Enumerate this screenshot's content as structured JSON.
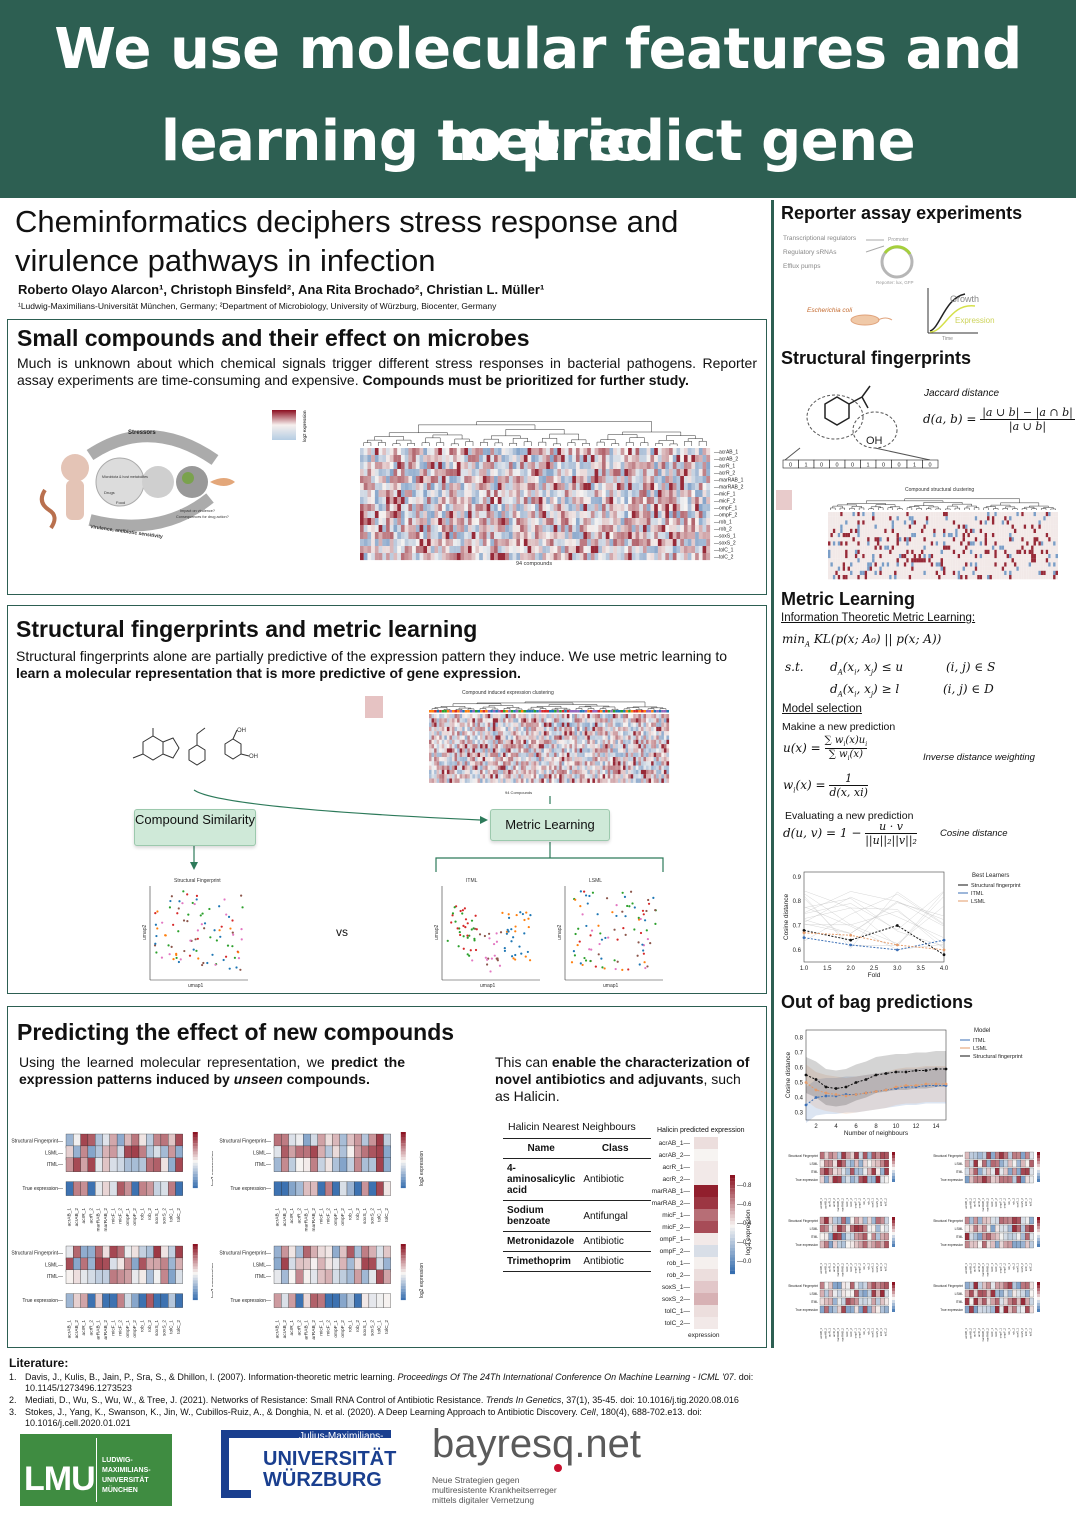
{
  "banner": {
    "line1": "We use molecular features and metric",
    "line2": "learning to predict gene expression"
  },
  "header": {
    "title_line1": "Cheminformatics deciphers stress response and",
    "title_line2": "virulence pathways in infection",
    "authors": "Roberto Olayo Alarcon¹, Christoph Binsfeld², Ana Rita Brochado², Christian L. Müller¹",
    "affiliations": "¹Ludwig-Maximilians-Universität München, Germany; ²Department of Microbiology, University of Würzburg, Biocenter, Germany"
  },
  "section1": {
    "title": "Small compounds and their effect on microbes",
    "text_normal": "Much is unknown about which chemical signals trigger different stress responses in bacterial pathogens. Reporter assay experiments are time-consuming and expensive. ",
    "text_bold": "Compounds must be prioritized for further study.",
    "figure_labels": {
      "stressors": "Stressors",
      "virulence": "Virulence, antibiotic sensitivity",
      "microbiota": "Microbiota & host metabolites",
      "drugs": "Drugs",
      "food": "Food",
      "impact": "Impact on virulence?",
      "consequences": "Consequences for drug action?",
      "cbar_label": "log2 expression",
      "xlabel": "94 compounds"
    },
    "genes": [
      "acrAB_1",
      "acrAB_2",
      "acrR_1",
      "acrR_2",
      "marRAB_1",
      "marRAB_2",
      "micF_1",
      "micF_2",
      "ompF_1",
      "ompF_2",
      "rob_1",
      "rob_2",
      "soxS_1",
      "soxS_2",
      "tolC_1",
      "tolC_2"
    ]
  },
  "section2": {
    "title": "Structural fingerprints and metric learning",
    "text_normal": "Structural fingerprints alone are partially predictive of the expression pattern they induce. We use metric learning to ",
    "text_bold": "learn a molecular representation that is more predictive of gene expression.",
    "heatmap_title": "Compound induced expression clustering",
    "heatmap_xlabel": "94 Compounds",
    "compound_similarity": "Compound Similarity",
    "metric_learning": "Metric Learning",
    "scatter_titles": [
      "Structural Fingerprint",
      "ITML",
      "LSML"
    ],
    "xlabel": "umap1",
    "ylabel": "umap2",
    "vs": "vs"
  },
  "section3": {
    "title": "Predicting the effect of new compounds",
    "left_text_1": "Using the learned molecular representation, we ",
    "left_text_bold_1": "predict the expression patterns induced by ",
    "left_text_bolditalic": "unseen",
    "left_text_bold_2": " compounds.",
    "right_text_1": "This can ",
    "right_text_bold": "enable the characterization of novel antibiotics and adjuvants",
    "right_text_2": ", such as Halicin.",
    "row_labels": [
      "Structural Fingerprint",
      "LSML",
      "ITML",
      "True expression"
    ],
    "cbar_label": "log2 expression",
    "table_title": "Halicin Nearest Neighbours",
    "table_headers": [
      "Name",
      "Class"
    ],
    "table_rows": [
      {
        "name": "4-aminosalicylic acid",
        "class": "Antibiotic"
      },
      {
        "name": "Sodium benzoate",
        "class": "Antifungal"
      },
      {
        "name": "Metronidazole",
        "class": "Antibiotic"
      },
      {
        "name": "Trimethoprim",
        "class": "Antibiotic"
      }
    ],
    "halicin_title": "Halicin predicted expression",
    "halicin_xlabel": "expression",
    "halicin_ticks": [
      "0.8",
      "0.6",
      "0.4",
      "0.2",
      "0.0"
    ]
  },
  "right": {
    "reporter_title": "Reporter assay experiments",
    "reporter_labels": {
      "tr": "Transcriptional regulators",
      "rs": "Regulatory sRNAs",
      "ep": "Efflux pumps",
      "promoter": "Promoter",
      "reporter": "Reporter: lux, GFP",
      "ecoli": "Escherichia coli",
      "growth": "Growth",
      "expression": "Expression",
      "time": "Time"
    },
    "fp_title": "Structural fingerprints",
    "jaccard": "Jaccard distance",
    "fp_bits": [
      "0",
      "1",
      "0",
      "0",
      "0",
      "1",
      "0",
      "0",
      "1",
      "0"
    ],
    "fp_heatmap_title": "Compound structural clustering",
    "ml_title": "Metric Learning",
    "itml_title": "Information Theoretic Metric Learning:",
    "model_selection": "Model selection",
    "new_pred": "Makine a new prediction",
    "idw": "Inverse distance weighting",
    "eval_pred": "Evaluating a new prediction",
    "cos_dist": "Cosine distance",
    "oob_title": "Out of bag predictions"
  },
  "chart_data": [
    {
      "type": "line",
      "x": [
        1.0,
        2.0,
        3.0,
        4.0
      ],
      "xlabel": "Fold",
      "ylabel": "Cosine distance",
      "ylim": [
        0.55,
        0.92
      ],
      "xticks": [
        "1.0",
        "1.5",
        "2.0",
        "2.5",
        "3.0",
        "3.5",
        "4.0"
      ],
      "yticks": [
        "0.9",
        "0.8",
        "0.7",
        "0.6"
      ],
      "legend_title": "Best Learners",
      "legend_placement": "top-right",
      "series": [
        {
          "name": "Structural fingerprint",
          "values": [
            0.68,
            0.64,
            0.7,
            0.58
          ],
          "color": "#111111"
        },
        {
          "name": "ITML",
          "values": [
            0.65,
            0.62,
            0.6,
            0.64
          ],
          "color": "#3b6fb6"
        },
        {
          "name": "LSML",
          "values": [
            0.67,
            0.66,
            0.62,
            0.6
          ],
          "color": "#e39b6a"
        }
      ]
    },
    {
      "type": "line",
      "x": [
        1,
        2,
        3,
        4,
        5,
        6,
        7,
        8,
        9,
        10,
        11,
        12,
        13,
        14,
        15
      ],
      "xlabel": "Number of neighbours",
      "ylabel": "Cosine distance",
      "ylim": [
        0.25,
        0.85
      ],
      "xticks": [
        "2",
        "4",
        "6",
        "8",
        "10",
        "12",
        "14"
      ],
      "yticks": [
        "0.8",
        "0.7",
        "0.6",
        "0.5",
        "0.4",
        "0.3"
      ],
      "legend_title": "Model",
      "legend_placement": "top-right",
      "series": [
        {
          "name": "ITML",
          "values": [
            0.35,
            0.4,
            0.41,
            0.41,
            0.42,
            0.42,
            0.43,
            0.44,
            0.45,
            0.46,
            0.47,
            0.47,
            0.48,
            0.48,
            0.48
          ],
          "color": "#3b6fb6"
        },
        {
          "name": "LSML",
          "values": [
            0.5,
            0.45,
            0.43,
            0.42,
            0.41,
            0.42,
            0.43,
            0.44,
            0.45,
            0.47,
            0.48,
            0.48,
            0.49,
            0.49,
            0.49
          ],
          "color": "#e39b6a"
        },
        {
          "name": "Structural fingerprint",
          "values": [
            0.55,
            0.52,
            0.47,
            0.46,
            0.47,
            0.5,
            0.52,
            0.55,
            0.56,
            0.57,
            0.57,
            0.58,
            0.58,
            0.59,
            0.59
          ],
          "color": "#111111"
        }
      ]
    }
  ],
  "literature": {
    "title": "Literature:",
    "items": [
      {
        "n": "1.",
        "plain": "Davis, J., Kulis, B., Jain, P., Sra, S., & Dhillon, I. (2007). Information-theoretic metric learning. ",
        "ital": "Proceedings Of The 24Th International Conference On Machine Learning - ICML '07",
        "tail": ". doi: 10.1145/1273496.1273523"
      },
      {
        "n": "2.",
        "plain": "Mediati, D., Wu, S., Wu, W., & Tree, J. (2021). Networks of Resistance: Small RNA Control of Antibiotic Resistance. ",
        "ital": "Trends In Genetics",
        "tail": ", 37(1), 35-45. doi: 10.1016/j.tig.2020.08.016"
      },
      {
        "n": "3.",
        "plain": "Stokes, J., Yang, K., Swanson, K., Jin, W., Cubillos-Ruiz, A., & Donghia, N. et al. (2020). A Deep Learning Approach to Antibiotic Discovery. ",
        "ital": "Cell",
        "tail": ", 180(4), 688-702.e13. doi: 10.1016/j.cell.2020.01.021"
      }
    ]
  },
  "logos": {
    "lmu": "LMU",
    "lmu_text": [
      "LUDWIG-",
      "MAXIMILIANS-",
      "UNIVERSITÄT",
      "MÜNCHEN"
    ],
    "jmu_top": "Julius-Maximilians-",
    "jmu_1": "UNIVERSITÄT",
    "jmu_2": "WÜRZBURG",
    "bay": "bayresq",
    "bay_net": ".net",
    "bay_sub": [
      "Neue Strategien gegen",
      "multiresistente Krankheitserreger",
      "mittels digitaler Vernetzung"
    ]
  },
  "colors": {
    "brand_green": "#2d5f52",
    "heat_red": "#b2182b",
    "heat_blue": "#2166ac"
  }
}
